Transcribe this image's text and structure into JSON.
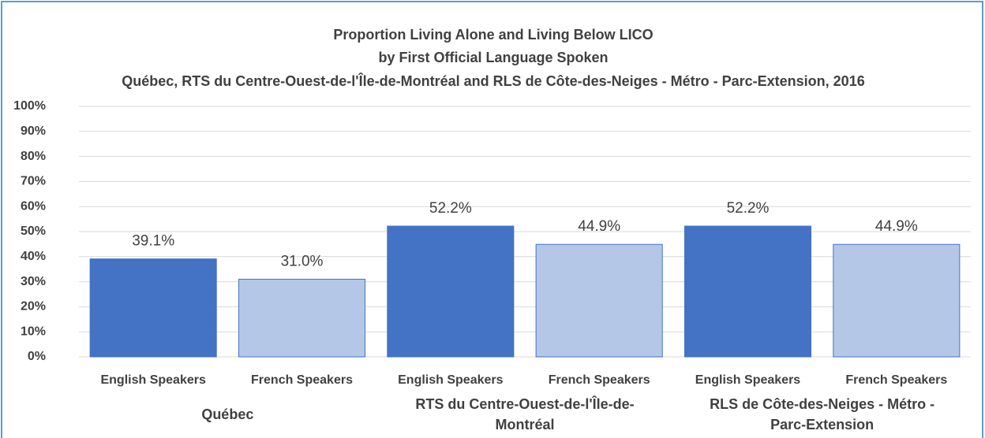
{
  "chart_data": {
    "type": "bar",
    "title": [
      "Proportion Living Alone and Living Below LICO",
      "by First Official Language Spoken",
      "Québec, RTS du Centre-Ouest-de-l'Île-de-Montréal and RLS de Côte-des-Neiges - Métro - Parc-Extension, 2016"
    ],
    "categories": [
      "English Speakers",
      "French Speakers",
      "English Speakers",
      "French Speakers",
      "English Speakers",
      "French Speakers"
    ],
    "groups": [
      "Québec",
      "RTS du Centre-Ouest-de-l'Île-de-Montréal",
      "RLS de Côte-des-Neiges - Métro - Parc-Extension"
    ],
    "values": [
      39.1,
      31.0,
      52.2,
      44.9,
      52.2,
      44.9
    ],
    "value_labels": [
      "39.1%",
      "31.0%",
      "52.2%",
      "44.9%",
      "52.2%",
      "44.9%"
    ],
    "colors": [
      "#4472c4",
      "#b4c7e7",
      "#4472c4",
      "#b4c7e7",
      "#4472c4",
      "#b4c7e7"
    ],
    "ylim": [
      0,
      100
    ],
    "yticks": [
      {
        "value": 0,
        "label": "0%"
      },
      {
        "value": 10,
        "label": "10%"
      },
      {
        "value": 20,
        "label": "20%"
      },
      {
        "value": 30,
        "label": "30%"
      },
      {
        "value": 40,
        "label": "40%"
      },
      {
        "value": 50,
        "label": "50%"
      },
      {
        "value": 60,
        "label": "60%"
      },
      {
        "value": 70,
        "label": "70%"
      },
      {
        "value": 80,
        "label": "80%"
      },
      {
        "value": 90,
        "label": "90%"
      },
      {
        "value": 100,
        "label": "100%"
      }
    ],
    "grid": true
  }
}
